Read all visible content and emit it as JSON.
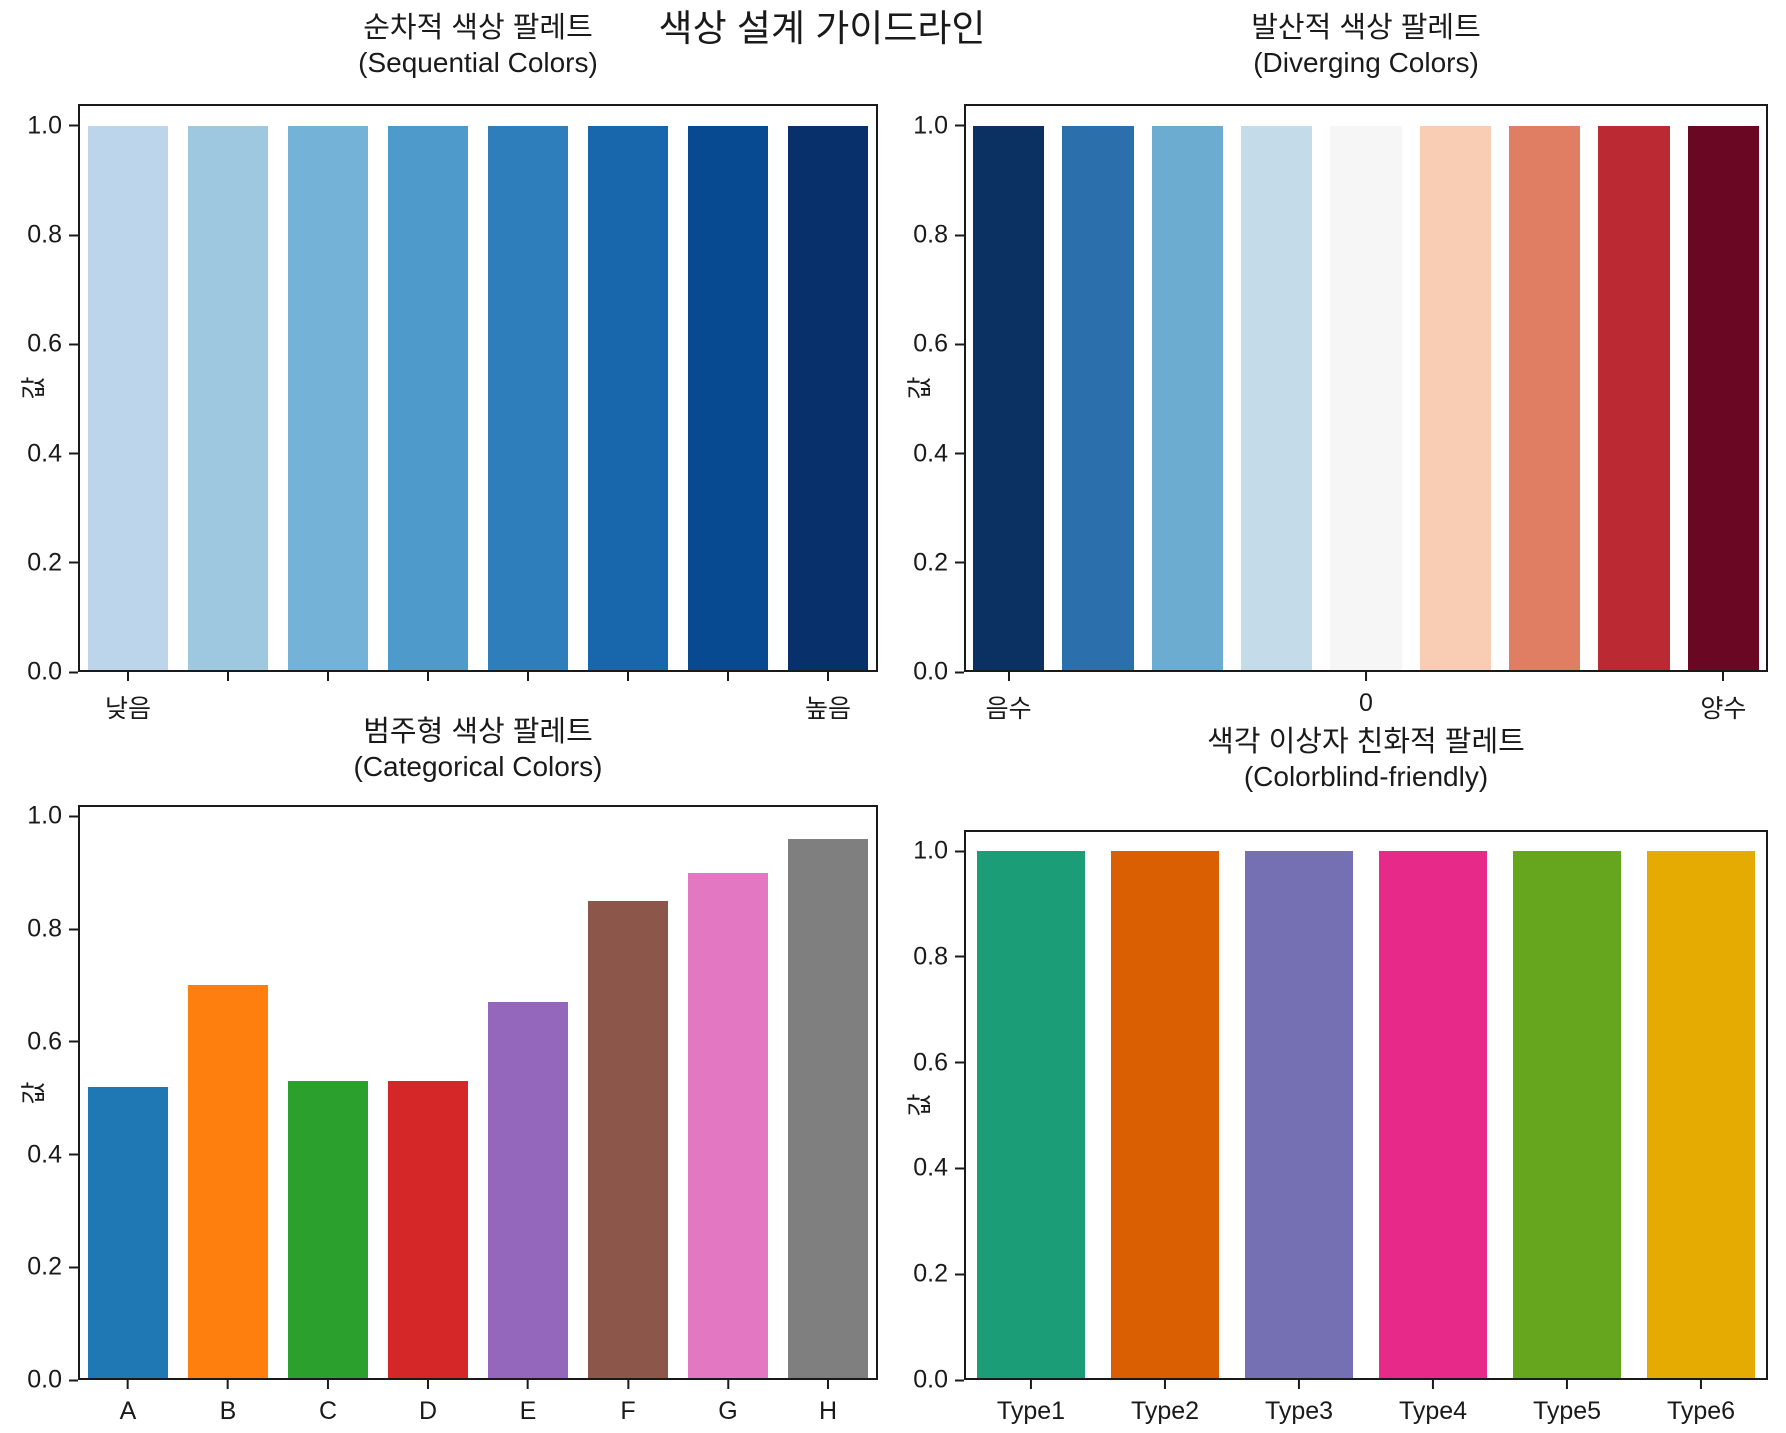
{
  "suptitle": "색상 설계 가이드라인",
  "chart_data": [
    {
      "type": "bar",
      "id": "sequential",
      "title": "순차적 색상 팔레트",
      "subtitle": "(Sequential Colors)",
      "ylabel": "값",
      "ylim": [
        0,
        1.04
      ],
      "yticks": [
        0,
        0.2,
        0.4,
        0.6,
        0.8,
        1.0
      ],
      "categories": [
        "낮음",
        "",
        "",
        "",
        "",
        "",
        "",
        "높음"
      ],
      "values": [
        1.0,
        1.0,
        1.0,
        1.0,
        1.0,
        1.0,
        1.0,
        1.0
      ],
      "colors": [
        "#bcd5ea",
        "#9dc8e0",
        "#74b2d8",
        "#4e9acb",
        "#2e7ebc",
        "#1866ab",
        "#084a91",
        "#08306b"
      ],
      "xticks": [
        {
          "pos": 0,
          "label": "낮음"
        },
        {
          "pos": 1,
          "label": ""
        },
        {
          "pos": 2,
          "label": ""
        },
        {
          "pos": 3,
          "label": ""
        },
        {
          "pos": 4,
          "label": ""
        },
        {
          "pos": 5,
          "label": ""
        },
        {
          "pos": 6,
          "label": ""
        },
        {
          "pos": 7,
          "label": "높음"
        }
      ],
      "legend": "none",
      "grid": false
    },
    {
      "type": "bar",
      "id": "diverging",
      "title": "발산적 색상 팔레트",
      "subtitle": "(Diverging Colors)",
      "ylabel": "값",
      "ylim": [
        0,
        1.04
      ],
      "yticks": [
        0,
        0.2,
        0.4,
        0.6,
        0.8,
        1.0
      ],
      "categories": [
        "음수",
        "",
        "",
        "",
        "0",
        "",
        "",
        "",
        "양수"
      ],
      "values": [
        1.0,
        1.0,
        1.0,
        1.0,
        1.0,
        1.0,
        1.0,
        1.0,
        1.0
      ],
      "colors": [
        "#0a3161",
        "#2c6fad",
        "#6cacd1",
        "#c4dcea",
        "#f6f6f6",
        "#f9ccb4",
        "#e07e64",
        "#bb2a33",
        "#6a0722"
      ],
      "xticks": [
        {
          "pos": 0,
          "label": "음수"
        },
        {
          "pos": 4,
          "label": "0"
        },
        {
          "pos": 8,
          "label": "양수"
        }
      ],
      "legend": "none",
      "grid": false
    },
    {
      "type": "bar",
      "id": "categorical",
      "title": "범주형 색상 팔레트",
      "subtitle": "(Categorical Colors)",
      "ylabel": "값",
      "ylim": [
        0,
        1.02
      ],
      "yticks": [
        0,
        0.2,
        0.4,
        0.6,
        0.8,
        1.0
      ],
      "categories": [
        "A",
        "B",
        "C",
        "D",
        "E",
        "F",
        "G",
        "H"
      ],
      "values": [
        0.52,
        0.7,
        0.53,
        0.53,
        0.67,
        0.85,
        0.9,
        0.96
      ],
      "colors": [
        "#1f77b4",
        "#ff7f0e",
        "#2ca02c",
        "#d62728",
        "#9467bd",
        "#8c564b",
        "#e377c2",
        "#7f7f7f"
      ],
      "xticks": [
        {
          "pos": 0,
          "label": "A"
        },
        {
          "pos": 1,
          "label": "B"
        },
        {
          "pos": 2,
          "label": "C"
        },
        {
          "pos": 3,
          "label": "D"
        },
        {
          "pos": 4,
          "label": "E"
        },
        {
          "pos": 5,
          "label": "F"
        },
        {
          "pos": 6,
          "label": "G"
        },
        {
          "pos": 7,
          "label": "H"
        }
      ],
      "legend": "none",
      "grid": false
    },
    {
      "type": "bar",
      "id": "colorblind",
      "title": "색각 이상자 친화적 팔레트",
      "subtitle": "(Colorblind-friendly)",
      "ylabel": "값",
      "ylim": [
        0,
        1.04
      ],
      "yticks": [
        0,
        0.2,
        0.4,
        0.6,
        0.8,
        1.0
      ],
      "categories": [
        "Type1",
        "Type2",
        "Type3",
        "Type4",
        "Type5",
        "Type6"
      ],
      "values": [
        1.0,
        1.0,
        1.0,
        1.0,
        1.0,
        1.0
      ],
      "colors": [
        "#1b9e77",
        "#d95f02",
        "#7570b3",
        "#e7298a",
        "#66a61e",
        "#e6ab02"
      ],
      "xticks": [
        {
          "pos": 0,
          "label": "Type1"
        },
        {
          "pos": 1,
          "label": "Type2"
        },
        {
          "pos": 2,
          "label": "Type3"
        },
        {
          "pos": 3,
          "label": "Type4"
        },
        {
          "pos": 4,
          "label": "Type5"
        },
        {
          "pos": 5,
          "label": "Type6"
        }
      ],
      "legend": "none",
      "grid": false
    }
  ]
}
